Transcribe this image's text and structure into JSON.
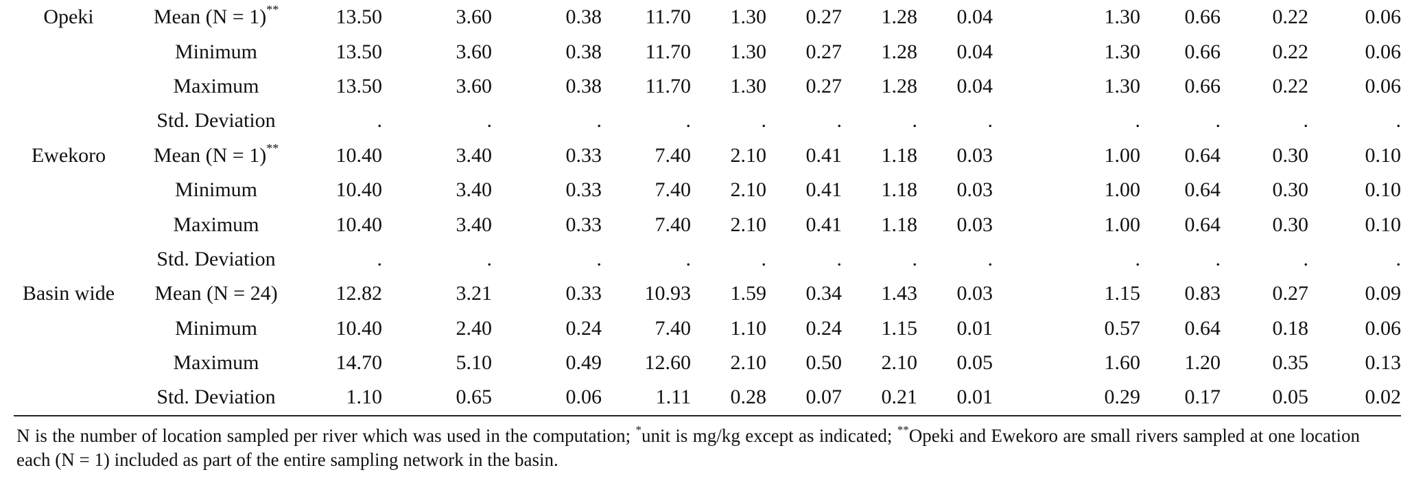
{
  "rows": [
    {
      "river": "Opeki",
      "stat": "Mean (N = 1)",
      "mark": "**",
      "values": [
        "13.50",
        "3.60",
        "0.38",
        "11.70",
        "1.30",
        "0.27",
        "1.28",
        "0.04",
        "1.30",
        "0.66",
        "0.22",
        "0.06"
      ]
    },
    {
      "river": "",
      "stat": "Minimum",
      "mark": "",
      "values": [
        "13.50",
        "3.60",
        "0.38",
        "11.70",
        "1.30",
        "0.27",
        "1.28",
        "0.04",
        "1.30",
        "0.66",
        "0.22",
        "0.06"
      ]
    },
    {
      "river": "",
      "stat": "Maximum",
      "mark": "",
      "values": [
        "13.50",
        "3.60",
        "0.38",
        "11.70",
        "1.30",
        "0.27",
        "1.28",
        "0.04",
        "1.30",
        "0.66",
        "0.22",
        "0.06"
      ]
    },
    {
      "river": "",
      "stat": "Std. Deviation",
      "mark": "",
      "values": [
        ".",
        ".",
        ".",
        ".",
        ".",
        ".",
        ".",
        ".",
        ".",
        ".",
        ".",
        "."
      ]
    },
    {
      "river": "Ewekoro",
      "stat": "Mean (N = 1)",
      "mark": "**",
      "values": [
        "10.40",
        "3.40",
        "0.33",
        "7.40",
        "2.10",
        "0.41",
        "1.18",
        "0.03",
        "1.00",
        "0.64",
        "0.30",
        "0.10"
      ]
    },
    {
      "river": "",
      "stat": "Minimum",
      "mark": "",
      "values": [
        "10.40",
        "3.40",
        "0.33",
        "7.40",
        "2.10",
        "0.41",
        "1.18",
        "0.03",
        "1.00",
        "0.64",
        "0.30",
        "0.10"
      ]
    },
    {
      "river": "",
      "stat": "Maximum",
      "mark": "",
      "values": [
        "10.40",
        "3.40",
        "0.33",
        "7.40",
        "2.10",
        "0.41",
        "1.18",
        "0.03",
        "1.00",
        "0.64",
        "0.30",
        "0.10"
      ]
    },
    {
      "river": "",
      "stat": "Std. Deviation",
      "mark": "",
      "values": [
        ".",
        ".",
        ".",
        ".",
        ".",
        ".",
        ".",
        ".",
        ".",
        ".",
        ".",
        "."
      ]
    },
    {
      "river": "Basin wide",
      "stat": "Mean (N = 24)",
      "mark": "",
      "values": [
        "12.82",
        "3.21",
        "0.33",
        "10.93",
        "1.59",
        "0.34",
        "1.43",
        "0.03",
        "1.15",
        "0.83",
        "0.27",
        "0.09"
      ]
    },
    {
      "river": "",
      "stat": "Minimum",
      "mark": "",
      "values": [
        "10.40",
        "2.40",
        "0.24",
        "7.40",
        "1.10",
        "0.24",
        "1.15",
        "0.01",
        "0.57",
        "0.64",
        "0.18",
        "0.06"
      ]
    },
    {
      "river": "",
      "stat": "Maximum",
      "mark": "",
      "values": [
        "14.70",
        "5.10",
        "0.49",
        "12.60",
        "2.10",
        "0.50",
        "2.10",
        "0.05",
        "1.60",
        "1.20",
        "0.35",
        "0.13"
      ]
    },
    {
      "river": "",
      "stat": "Std. Deviation",
      "mark": "",
      "values": [
        "1.10",
        "0.65",
        "0.06",
        "1.11",
        "0.28",
        "0.07",
        "0.21",
        "0.01",
        "0.29",
        "0.17",
        "0.05",
        "0.02"
      ]
    }
  ],
  "footnote": {
    "part1": "N is the number of location sampled per river which was used in the computation; ",
    "mark1": "*",
    "part2": "unit is mg/kg except as indicated; ",
    "mark2": "**",
    "part3": "Opeki and Ewekoro are small rivers sampled at one location each (N = 1) included as part of the entire sampling network in the basin."
  }
}
